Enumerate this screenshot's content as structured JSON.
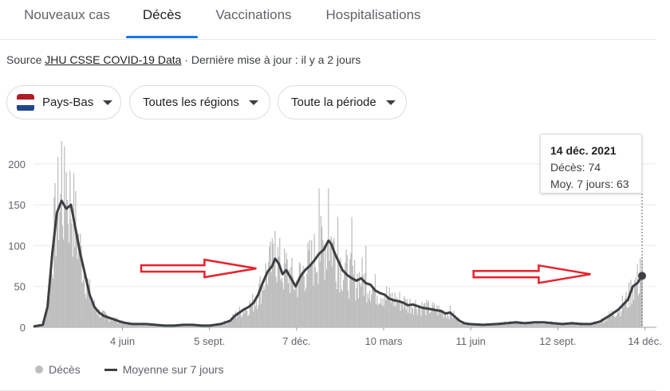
{
  "tabs": [
    "Nouveaux cas",
    "Décès",
    "Vaccinations",
    "Hospitalisations"
  ],
  "active_tab": "Décès",
  "source": {
    "prefix": "Source ",
    "link": "JHU CSSE COVID-19 Data",
    "suffix": " · Dernière mise à jour : il y a 2 jours"
  },
  "filters": {
    "country": "Pays-Bas",
    "region": "Toutes les régions",
    "period": "Toute la période"
  },
  "flag_colors": [
    "#ae1c28",
    "#ffffff",
    "#21468b"
  ],
  "tooltip": {
    "date": "14 déc. 2021",
    "deaths": "Décès: 74",
    "avg": "Moy. 7 jours: 63"
  },
  "legend": {
    "bars": "Décès",
    "line": "Moyenne sur 7 jours"
  },
  "annotation_color": "#e8212b",
  "chart_data": {
    "type": "bar",
    "ylim": [
      0,
      230
    ],
    "y_ticks": [
      0,
      50,
      100,
      150,
      200
    ],
    "x_range_days": [
      0,
      650
    ],
    "x_ticks": [
      {
        "label": "4 juin",
        "day": 95
      },
      {
        "label": "5 sept.",
        "day": 188
      },
      {
        "label": "7 déc.",
        "day": 281
      },
      {
        "label": "10 mars",
        "day": 374
      },
      {
        "label": "11 juin",
        "day": 467
      },
      {
        "label": "12 sept.",
        "day": 560
      },
      {
        "label": "14 déc.",
        "day": 653
      }
    ],
    "series": [
      {
        "name": "Moyenne sur 7 jours",
        "points": [
          [
            0,
            1
          ],
          [
            10,
            3
          ],
          [
            15,
            25
          ],
          [
            20,
            90
          ],
          [
            25,
            140
          ],
          [
            30,
            155
          ],
          [
            35,
            145
          ],
          [
            40,
            150
          ],
          [
            45,
            120
          ],
          [
            50,
            90
          ],
          [
            55,
            65
          ],
          [
            60,
            40
          ],
          [
            65,
            25
          ],
          [
            70,
            18
          ],
          [
            75,
            14
          ],
          [
            80,
            12
          ],
          [
            85,
            10
          ],
          [
            90,
            8
          ],
          [
            95,
            6
          ],
          [
            105,
            4
          ],
          [
            120,
            4
          ],
          [
            130,
            3
          ],
          [
            140,
            2
          ],
          [
            150,
            2
          ],
          [
            160,
            3
          ],
          [
            170,
            3
          ],
          [
            180,
            2
          ],
          [
            188,
            2
          ],
          [
            200,
            4
          ],
          [
            210,
            8
          ],
          [
            215,
            14
          ],
          [
            220,
            18
          ],
          [
            225,
            22
          ],
          [
            230,
            25
          ],
          [
            235,
            30
          ],
          [
            240,
            40
          ],
          [
            245,
            55
          ],
          [
            250,
            68
          ],
          [
            255,
            75
          ],
          [
            258,
            84
          ],
          [
            262,
            78
          ],
          [
            266,
            65
          ],
          [
            270,
            70
          ],
          [
            275,
            60
          ],
          [
            280,
            50
          ],
          [
            285,
            62
          ],
          [
            290,
            70
          ],
          [
            295,
            75
          ],
          [
            300,
            82
          ],
          [
            305,
            90
          ],
          [
            310,
            95
          ],
          [
            315,
            106
          ],
          [
            318,
            102
          ],
          [
            322,
            90
          ],
          [
            326,
            80
          ],
          [
            330,
            70
          ],
          [
            335,
            64
          ],
          [
            340,
            60
          ],
          [
            345,
            57
          ],
          [
            350,
            60
          ],
          [
            355,
            54
          ],
          [
            360,
            52
          ],
          [
            365,
            45
          ],
          [
            370,
            42
          ],
          [
            375,
            40
          ],
          [
            380,
            35
          ],
          [
            385,
            33
          ],
          [
            390,
            32
          ],
          [
            395,
            30
          ],
          [
            400,
            27
          ],
          [
            405,
            28
          ],
          [
            410,
            26
          ],
          [
            415,
            24
          ],
          [
            420,
            23
          ],
          [
            425,
            22
          ],
          [
            430,
            21
          ],
          [
            435,
            20
          ],
          [
            440,
            17
          ],
          [
            445,
            18
          ],
          [
            450,
            13
          ],
          [
            455,
            8
          ],
          [
            460,
            5
          ],
          [
            465,
            4
          ],
          [
            480,
            3
          ],
          [
            495,
            4
          ],
          [
            505,
            5
          ],
          [
            515,
            6
          ],
          [
            525,
            5
          ],
          [
            535,
            6
          ],
          [
            545,
            6
          ],
          [
            555,
            5
          ],
          [
            565,
            4
          ],
          [
            575,
            5
          ],
          [
            585,
            4
          ],
          [
            595,
            4
          ],
          [
            605,
            7
          ],
          [
            615,
            14
          ],
          [
            620,
            18
          ],
          [
            625,
            22
          ],
          [
            630,
            28
          ],
          [
            635,
            34
          ],
          [
            640,
            50
          ],
          [
            645,
            54
          ],
          [
            650,
            63
          ]
        ]
      }
    ],
    "bar_peaks": [
      [
        30,
        228
      ],
      [
        35,
        190
      ],
      [
        258,
        118
      ],
      [
        305,
        170
      ],
      [
        315,
        170
      ],
      [
        325,
        135
      ],
      [
        340,
        135
      ],
      [
        355,
        100
      ],
      [
        648,
        85
      ]
    ],
    "highlight_point": {
      "day": 650,
      "value": 63
    },
    "arrows": [
      {
        "from_day": 115,
        "to_day": 238,
        "value": 72
      },
      {
        "from_day": 470,
        "to_day": 595,
        "value": 65
      }
    ]
  }
}
